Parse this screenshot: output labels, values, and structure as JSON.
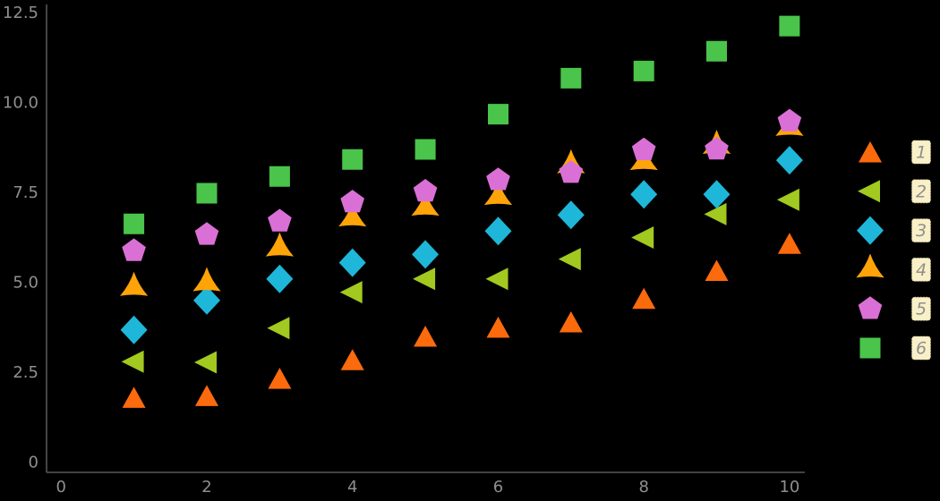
{
  "chart_data": {
    "type": "scatter",
    "x": [
      1,
      2,
      3,
      4,
      5,
      6,
      7,
      8,
      9,
      10
    ],
    "series": [
      {
        "name": "1",
        "marker": "triangle-up",
        "color": "#fb6a0d",
        "values": [
          1.8,
          1.85,
          2.33,
          2.85,
          3.5,
          3.75,
          3.9,
          4.55,
          5.33,
          6.08
        ]
      },
      {
        "name": "2",
        "marker": "triangle-left",
        "color": "#a2c91f",
        "values": [
          2.8,
          2.78,
          3.73,
          4.73,
          5.1,
          5.1,
          5.65,
          6.25,
          6.9,
          7.3
        ]
      },
      {
        "name": "3",
        "marker": "diamond",
        "color": "#1eb7d9",
        "values": [
          3.68,
          4.5,
          5.1,
          5.55,
          5.78,
          6.43,
          6.88,
          7.45,
          7.45,
          8.4
        ]
      },
      {
        "name": "4",
        "marker": "tri-star",
        "color": "#ffa408",
        "values": [
          4.85,
          4.98,
          5.95,
          6.78,
          7.08,
          7.38,
          8.26,
          8.35,
          8.8,
          9.3
        ]
      },
      {
        "name": "5",
        "marker": "pentagon",
        "color": "#da70d6",
        "values": [
          5.88,
          6.33,
          6.7,
          7.23,
          7.53,
          7.85,
          8.05,
          8.68,
          8.7,
          9.48
        ]
      },
      {
        "name": "6",
        "marker": "square",
        "color": "#4ac44a",
        "values": [
          6.63,
          7.48,
          7.95,
          8.42,
          8.7,
          9.68,
          10.68,
          10.88,
          11.43,
          12.13
        ]
      }
    ],
    "title": "",
    "xlabel": "",
    "ylabel": "",
    "xticks": {
      "values": [
        0,
        2,
        4,
        6,
        8,
        10
      ],
      "labels": [
        "0",
        "2",
        "4",
        "6",
        "8",
        "10"
      ]
    },
    "yticks": {
      "values": [
        0,
        2.5,
        5.0,
        7.5,
        10.0,
        12.5
      ],
      "labels": [
        "0",
        "2.5",
        "5.0",
        "7.5",
        "10.0",
        "12.5"
      ]
    },
    "xlim": [
      -0.2,
      10.21
    ],
    "ylim": [
      -0.28,
      12.73
    ],
    "grid": false,
    "legend": {
      "position": "right-outside",
      "labels": [
        "1",
        "2",
        "3",
        "4",
        "5",
        "6"
      ],
      "label_bg": "#faf0c8",
      "label_border": "#c9bd92",
      "label_color": "#8f8f8f"
    }
  },
  "style": {
    "background": "#000000",
    "spine_color": "#6a6a6a",
    "tick_label_color": "#8f8f8f"
  }
}
